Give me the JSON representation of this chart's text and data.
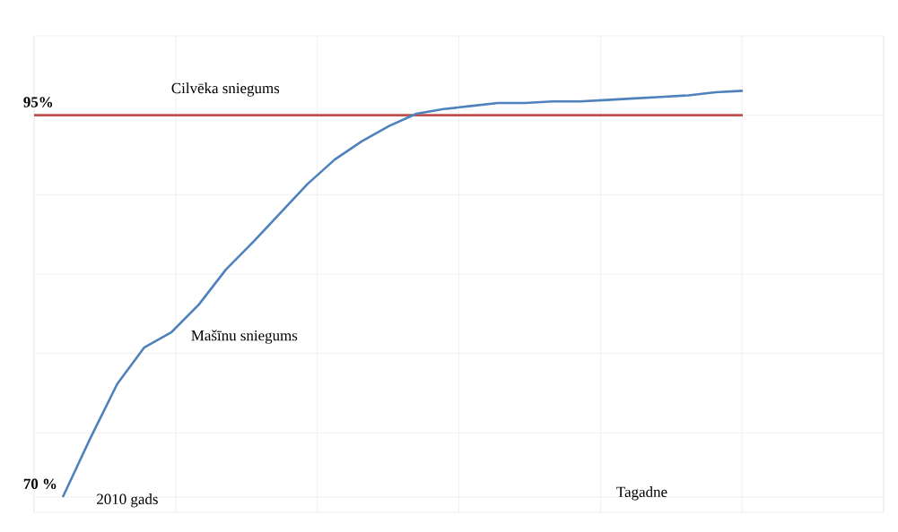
{
  "chart_data": {
    "type": "line",
    "ylim": [
      69,
      100.2
    ],
    "categories": [
      null,
      null,
      null,
      null,
      null,
      null,
      null,
      null,
      null,
      null,
      null,
      null,
      null,
      null,
      null,
      null,
      null,
      null,
      null,
      null,
      null,
      null,
      null,
      null,
      null,
      null
    ],
    "yticks": [
      {
        "value": 70,
        "label": "70 %"
      },
      {
        "value": 74.2,
        "label": null
      },
      {
        "value": 79.4,
        "label": null
      },
      {
        "value": 84.6,
        "label": null
      },
      {
        "value": 89.8,
        "label": null
      },
      {
        "value": 95,
        "label": "95%"
      }
    ],
    "tick_labels": "y",
    "grid": true,
    "series": [
      {
        "name": "Mašīnu sniegums",
        "color": "#4f81bd",
        "values": [
          70.0,
          73.8,
          77.4,
          79.8,
          80.8,
          82.6,
          84.9,
          86.7,
          88.6,
          90.5,
          92.1,
          93.3,
          94.3,
          95.1,
          95.4,
          95.6,
          95.8,
          95.8,
          95.9,
          95.9,
          96.0,
          96.1,
          96.2,
          96.3,
          96.5,
          96.6
        ]
      }
    ],
    "ref_lines": [
      {
        "axis": "y",
        "value": 95,
        "label": "Cilvēka sniegums",
        "color": "#c0504d"
      }
    ],
    "annotations": [
      "2010 gads",
      "Tagadne"
    ]
  }
}
